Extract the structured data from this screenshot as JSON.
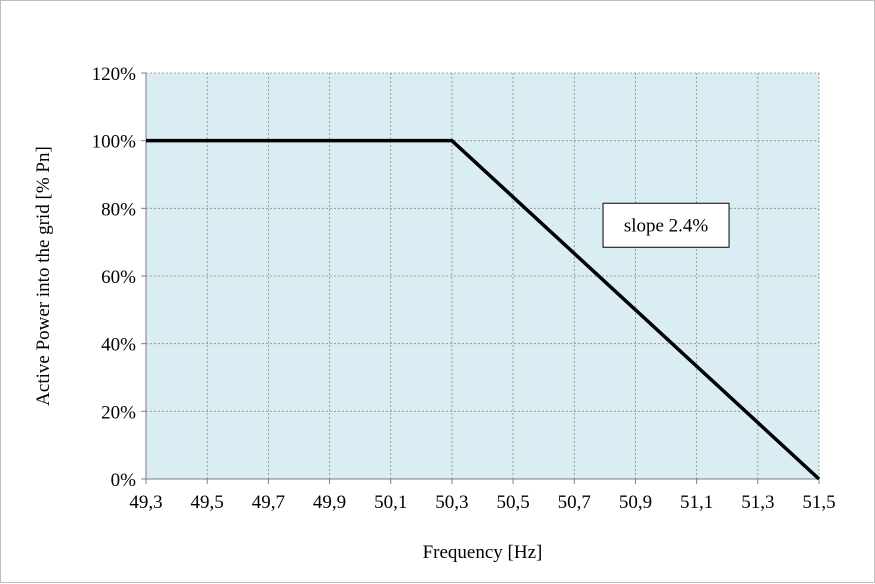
{
  "chart_data": {
    "type": "line",
    "title": "",
    "xlabel": "Frequency [Hz]",
    "ylabel": "Active Power into the grid [% Pn]",
    "x_ticks": [
      49.3,
      49.5,
      49.7,
      49.9,
      50.1,
      50.3,
      50.5,
      50.7,
      50.9,
      51.1,
      51.3,
      51.5
    ],
    "x_tick_labels": [
      "49,3",
      "49,5",
      "49,7",
      "49,9",
      "50,1",
      "50,3",
      "50,5",
      "50,7",
      "50,9",
      "51,1",
      "51,3",
      "51,5"
    ],
    "y_ticks": [
      0,
      20,
      40,
      60,
      80,
      100,
      120
    ],
    "y_tick_labels": [
      "0%",
      "20%",
      "40%",
      "60%",
      "80%",
      "100%",
      "120%"
    ],
    "xlim": [
      49.3,
      51.5
    ],
    "ylim": [
      0,
      120
    ],
    "grid": true,
    "plot_background": "#daedf3",
    "line_color": "#000000",
    "series": [
      {
        "x": [
          49.3,
          50.3,
          51.5
        ],
        "y": [
          100,
          100,
          0
        ]
      }
    ],
    "annotations": [
      {
        "text": "slope 2.4%",
        "x": 51.0,
        "y": 75
      }
    ]
  }
}
